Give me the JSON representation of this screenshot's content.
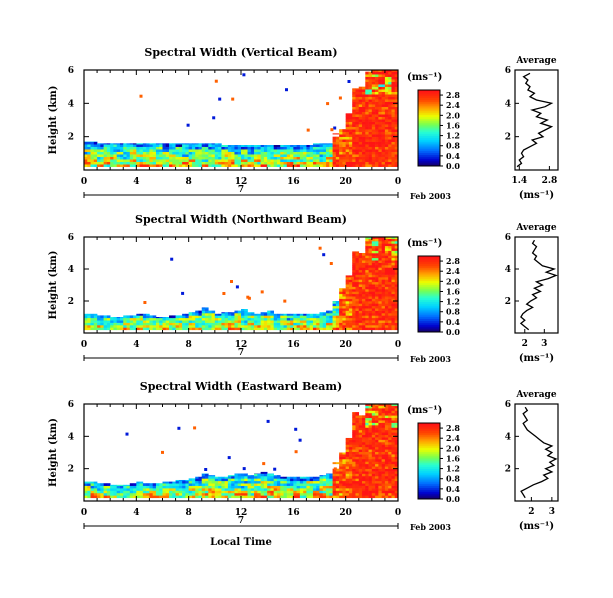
{
  "chart_data": [
    {
      "type": "heatmap",
      "title": "Spectral Width (Vertical Beam)",
      "ylabel": "Height (km)",
      "ylim": [
        0,
        6
      ],
      "yticks": [
        "2",
        "4",
        "6"
      ],
      "xlim": [
        0,
        24
      ],
      "xticks": [
        "0",
        "4",
        "8",
        "12",
        "16",
        "20",
        "0"
      ],
      "day_label": "7",
      "date_label": "Feb 2003",
      "colorbar": {
        "unit": "(ms⁻¹)",
        "ticks": [
          "0.0",
          "0.4",
          "0.8",
          "1.2",
          "1.6",
          "2.0",
          "2.4",
          "2.8"
        ],
        "vmin": 0.0,
        "vmax": 3.0
      },
      "echo_top_km": [
        1.7,
        1.7,
        1.6,
        1.6,
        1.6,
        1.6,
        1.6,
        1.6,
        1.6,
        1.6,
        1.6,
        1.6,
        1.6,
        1.6,
        1.6,
        1.6,
        1.6,
        1.6,
        1.6,
        1.6,
        1.6,
        1.5,
        1.5,
        1.5,
        1.5,
        1.5,
        1.5,
        1.5,
        1.5,
        1.5,
        1.5,
        1.5,
        1.5,
        1.5,
        1.5,
        1.6,
        1.6,
        1.6,
        2.2,
        2.5,
        3.4,
        4.9,
        5.0,
        5.9,
        6.0,
        6.0,
        6.0,
        6.0
      ],
      "profile": {
        "title": "Average",
        "xlabel": "(ms⁻¹)",
        "xlim": [
          1.2,
          3.2
        ],
        "xticks": [
          "1.4",
          "2.8"
        ],
        "ylim": [
          0,
          6
        ],
        "yticks": [
          "2",
          "4",
          "6"
        ],
        "heights_km": [
          0.2,
          0.4,
          0.6,
          0.8,
          1.0,
          1.2,
          1.4,
          1.6,
          1.8,
          2.0,
          2.2,
          2.4,
          2.6,
          2.8,
          3.0,
          3.2,
          3.4,
          3.6,
          3.8,
          4.0,
          4.2,
          4.4,
          4.6,
          4.8,
          5.0,
          5.2,
          5.4,
          5.6,
          5.8
        ],
        "values": [
          1.3,
          1.5,
          1.4,
          1.6,
          1.5,
          1.6,
          1.9,
          2.2,
          2.0,
          2.5,
          2.3,
          2.6,
          2.9,
          2.4,
          2.7,
          2.2,
          2.4,
          2.0,
          2.6,
          2.9,
          2.2,
          1.9,
          2.1,
          1.8,
          1.9,
          1.7,
          1.8,
          1.6,
          1.9
        ]
      }
    },
    {
      "type": "heatmap",
      "title": "Spectral Width (Northward Beam)",
      "ylabel": "Height (km)",
      "ylim": [
        0,
        6
      ],
      "yticks": [
        "2",
        "4",
        "6"
      ],
      "xlim": [
        0,
        24
      ],
      "xticks": [
        "0",
        "4",
        "8",
        "12",
        "16",
        "20",
        "0"
      ],
      "day_label": "7",
      "date_label": "Feb 2003",
      "colorbar": {
        "unit": "(ms⁻¹)",
        "ticks": [
          "0.0",
          "0.4",
          "0.8",
          "1.2",
          "1.6",
          "2.0",
          "2.4",
          "2.8"
        ],
        "vmin": 0.0,
        "vmax": 3.0
      },
      "echo_top_km": [
        1.2,
        1.2,
        1.1,
        1.1,
        1.0,
        1.0,
        1.1,
        1.1,
        1.2,
        1.2,
        1.1,
        1.0,
        1.0,
        1.1,
        1.1,
        1.2,
        1.3,
        1.4,
        1.6,
        1.4,
        1.2,
        1.3,
        1.3,
        1.4,
        1.5,
        1.3,
        1.2,
        1.3,
        1.4,
        1.2,
        1.2,
        1.2,
        1.2,
        1.2,
        1.2,
        1.2,
        1.3,
        1.4,
        2.0,
        2.8,
        3.6,
        5.1,
        5.0,
        6.0,
        6.0,
        6.0,
        6.0,
        6.0
      ],
      "profile": {
        "title": "Average",
        "xlabel": "(ms⁻¹)",
        "xlim": [
          1.5,
          3.7
        ],
        "xticks": [
          "2",
          "3"
        ],
        "ylim": [
          0,
          6
        ],
        "yticks": [
          "2",
          "4",
          "6"
        ],
        "heights_km": [
          0.2,
          0.4,
          0.6,
          0.8,
          1.0,
          1.2,
          1.4,
          1.6,
          1.8,
          2.0,
          2.2,
          2.4,
          2.6,
          2.8,
          3.0,
          3.2,
          3.4,
          3.6,
          3.8,
          4.0,
          4.2,
          4.4,
          4.6,
          4.8,
          5.0,
          5.2,
          5.4,
          5.6,
          5.8
        ],
        "values": [
          2.2,
          2.0,
          1.8,
          2.0,
          1.8,
          1.9,
          2.1,
          2.4,
          2.1,
          2.3,
          2.6,
          2.4,
          2.8,
          2.5,
          2.9,
          2.6,
          3.2,
          3.6,
          3.1,
          3.5,
          2.9,
          2.7,
          2.5,
          2.6,
          2.4,
          2.5,
          2.6,
          2.4,
          2.5
        ]
      }
    },
    {
      "type": "heatmap",
      "title": "Spectral Width (Eastward Beam)",
      "ylabel": "Height (km)",
      "ylim": [
        0,
        6
      ],
      "yticks": [
        "2",
        "4",
        "6"
      ],
      "xlim": [
        0,
        24
      ],
      "xticks": [
        "0",
        "4",
        "8",
        "12",
        "16",
        "20",
        "0"
      ],
      "day_label": "7",
      "date_label": "Feb 2003",
      "xlabel": "Local Time",
      "colorbar": {
        "unit": "(ms⁻¹)",
        "ticks": [
          "0.0",
          "0.4",
          "0.8",
          "1.2",
          "1.6",
          "2.0",
          "2.4",
          "2.8"
        ],
        "vmin": 0.0,
        "vmax": 3.0
      },
      "echo_top_km": [
        1.2,
        1.2,
        1.1,
        1.1,
        1.0,
        1.0,
        1.0,
        1.1,
        1.2,
        1.1,
        1.1,
        1.1,
        1.2,
        1.2,
        1.3,
        1.3,
        1.4,
        1.5,
        1.7,
        1.6,
        1.5,
        1.5,
        1.6,
        1.7,
        1.7,
        1.6,
        1.7,
        1.8,
        1.7,
        1.6,
        1.5,
        1.5,
        1.5,
        1.5,
        1.5,
        1.5,
        1.6,
        1.7,
        2.4,
        3.0,
        3.9,
        5.5,
        5.3,
        6.0,
        6.0,
        6.0,
        6.0,
        6.0
      ],
      "profile": {
        "title": "Average",
        "xlabel": "(ms⁻¹)",
        "xlim": [
          1.2,
          3.3
        ],
        "xticks": [
          "2",
          "3"
        ],
        "ylim": [
          0,
          6
        ],
        "yticks": [
          "2",
          "4",
          "6"
        ],
        "heights_km": [
          0.2,
          0.4,
          0.6,
          0.8,
          1.0,
          1.2,
          1.4,
          1.6,
          1.8,
          2.0,
          2.2,
          2.4,
          2.6,
          2.8,
          3.0,
          3.2,
          3.4,
          3.6,
          3.8,
          4.0,
          4.2,
          4.4,
          4.6,
          4.8,
          5.0,
          5.2,
          5.4,
          5.6,
          5.8
        ],
        "values": [
          1.7,
          1.6,
          1.5,
          1.8,
          2.1,
          2.5,
          2.8,
          2.6,
          3.0,
          2.7,
          3.1,
          2.9,
          3.2,
          2.8,
          3.0,
          2.7,
          3.0,
          2.6,
          2.4,
          2.2,
          2.0,
          1.8,
          1.7,
          1.6,
          1.8,
          1.7,
          1.6,
          1.8,
          1.7
        ]
      }
    }
  ]
}
